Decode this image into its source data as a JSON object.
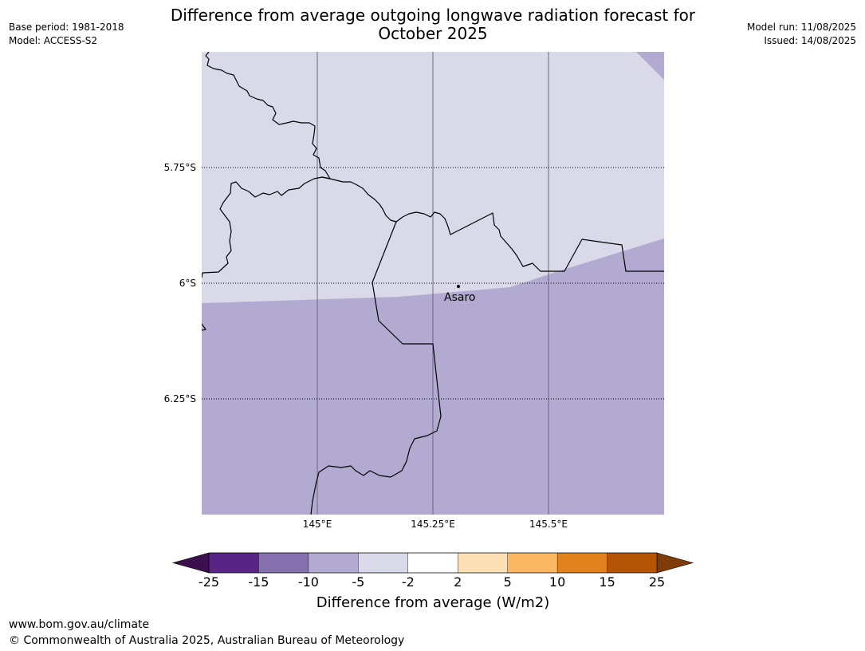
{
  "header": {
    "title_line1": "Difference from average outgoing longwave radiation forecast for",
    "title_line2": "October 2025",
    "base_period": "Base period: 1981-2018",
    "model": "Model: ACCESS-S2",
    "model_run": "Model run: 11/08/2025",
    "issued": "Issued: 14/08/2025"
  },
  "map": {
    "lat_labels": [
      "5.75°S",
      "6°S",
      "6.25°S"
    ],
    "lon_labels": [
      "145°E",
      "145.25°E",
      "145.5°E"
    ],
    "place": {
      "name": "Asaro"
    },
    "shading": {
      "upper_class": "-5 to -2",
      "lower_class": "-10 to -5"
    }
  },
  "colorbar": {
    "title": "Difference from average (W/m2)",
    "ticks": [
      "-25",
      "-15",
      "-10",
      "-5",
      "-2",
      "2",
      "5",
      "10",
      "15",
      "25"
    ],
    "colors": {
      "under": "#3b0e4e",
      "bins": [
        "#582585",
        "#8471ad",
        "#b2aad1",
        "#d9d9ea",
        "#ffffff",
        "#fee0b6",
        "#fcb762",
        "#e1821c",
        "#b45506"
      ],
      "over": "#7f3b08"
    }
  },
  "footer": {
    "url": "www.bom.gov.au/climate",
    "copyright": "© Commonwealth of Australia 2025, Australian Bureau of Meteorology"
  }
}
